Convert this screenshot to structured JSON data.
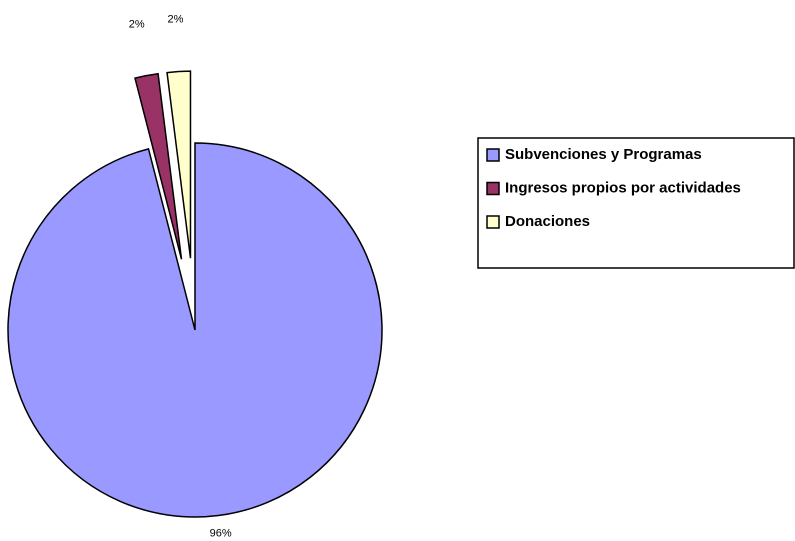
{
  "chart_data": {
    "type": "pie",
    "categories": [
      "Subvenciones y Programas",
      "Ingresos propios por actividades",
      "Donaciones"
    ],
    "values": [
      96,
      2,
      2
    ],
    "value_labels": [
      "96%",
      "2%",
      "2%"
    ],
    "colors": [
      "#9999ff",
      "#993366",
      "#ffffcc"
    ],
    "exploded": [
      false,
      true,
      true
    ],
    "legend": "right"
  }
}
